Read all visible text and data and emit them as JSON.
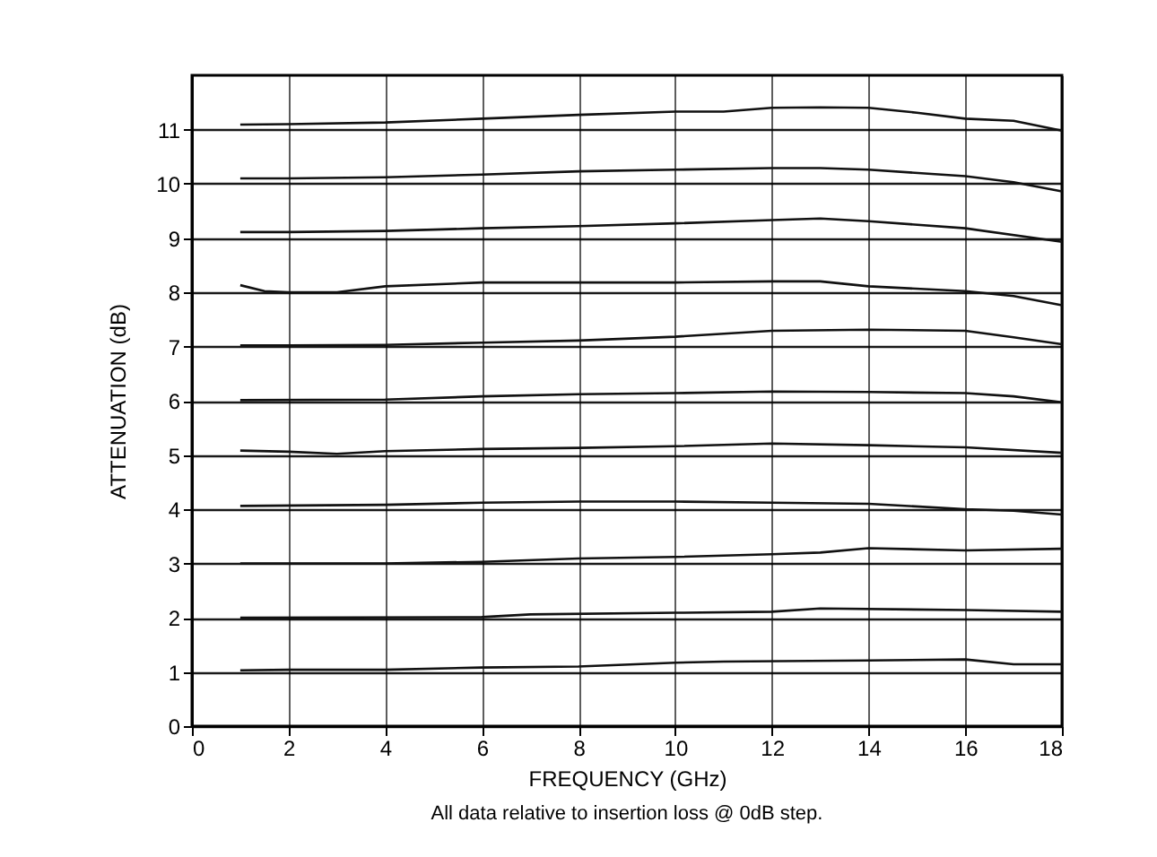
{
  "chart_data": {
    "type": "line",
    "xlabel": "FREQUENCY (GHz)",
    "ylabel": "ATTENUATION (dB)",
    "annotations": [
      "All data relative to insertion loss @ 0dB step."
    ],
    "xlim": [
      0,
      18
    ],
    "xticks": [
      0,
      2,
      4,
      6,
      8,
      10,
      12,
      14,
      16,
      18
    ],
    "ylim": [
      0,
      12
    ],
    "yticks": [
      0,
      1,
      2,
      3,
      4,
      5,
      6,
      7,
      8,
      9,
      10,
      11
    ],
    "grid": true,
    "legend": false,
    "marker": "none",
    "line_style": "solid",
    "series": [
      {
        "color": "#111111",
        "x": [
          1,
          2,
          4,
          6,
          8,
          10,
          11,
          12,
          13,
          14,
          15,
          16,
          17,
          18
        ],
        "values": [
          11.09,
          11.1,
          11.13,
          11.2,
          11.27,
          11.33,
          11.33,
          11.4,
          11.41,
          11.4,
          11.31,
          11.2,
          11.16,
          10.98
        ]
      },
      {
        "color": "#111111",
        "x": [
          1,
          2,
          4,
          6,
          8,
          10,
          12,
          13,
          14,
          16,
          17,
          18
        ],
        "values": [
          10.1,
          10.1,
          10.12,
          10.17,
          10.23,
          10.26,
          10.29,
          10.29,
          10.26,
          10.14,
          10.03,
          9.86
        ]
      },
      {
        "color": "#111111",
        "x": [
          1,
          2,
          4,
          6,
          8,
          10,
          12,
          13,
          14,
          16,
          18
        ],
        "values": [
          9.11,
          9.11,
          9.13,
          9.18,
          9.22,
          9.27,
          9.33,
          9.36,
          9.31,
          9.18,
          8.93
        ]
      },
      {
        "color": "#111111",
        "x": [
          1,
          1.5,
          2,
          3,
          4,
          6,
          8,
          10,
          12,
          13,
          14,
          16,
          17,
          18
        ],
        "values": [
          8.13,
          8.02,
          8.0,
          8.0,
          8.11,
          8.18,
          8.18,
          8.18,
          8.2,
          8.2,
          8.11,
          8.02,
          7.93,
          7.76
        ]
      },
      {
        "color": "#111111",
        "x": [
          1,
          2,
          4,
          6,
          8,
          10,
          12,
          14,
          16,
          17,
          18
        ],
        "values": [
          7.02,
          7.02,
          7.03,
          7.07,
          7.11,
          7.18,
          7.29,
          7.31,
          7.29,
          7.17,
          7.04
        ]
      },
      {
        "color": "#111111",
        "x": [
          1,
          4,
          6,
          8,
          10,
          12,
          14,
          16,
          17,
          18
        ],
        "values": [
          6.01,
          6.02,
          6.08,
          6.12,
          6.14,
          6.17,
          6.16,
          6.14,
          6.08,
          5.97
        ]
      },
      {
        "color": "#111111",
        "x": [
          1,
          2,
          3,
          4,
          6,
          8,
          10,
          12,
          14,
          16,
          18
        ],
        "values": [
          5.08,
          5.06,
          5.02,
          5.07,
          5.11,
          5.13,
          5.16,
          5.21,
          5.18,
          5.14,
          5.04
        ]
      },
      {
        "color": "#111111",
        "x": [
          1,
          4,
          6,
          8,
          10,
          12,
          14,
          16,
          17,
          18
        ],
        "values": [
          4.06,
          4.08,
          4.12,
          4.14,
          4.14,
          4.12,
          4.1,
          4.0,
          3.97,
          3.9
        ]
      },
      {
        "color": "#111111",
        "x": [
          1,
          4,
          6,
          8,
          10,
          12,
          13,
          14,
          16,
          18
        ],
        "values": [
          3.0,
          3.0,
          3.03,
          3.09,
          3.12,
          3.17,
          3.2,
          3.28,
          3.24,
          3.27
        ]
      },
      {
        "color": "#111111",
        "x": [
          1,
          6,
          7,
          10,
          12,
          13,
          16,
          18
        ],
        "values": [
          2.0,
          2.01,
          2.06,
          2.09,
          2.11,
          2.17,
          2.14,
          2.11
        ]
      },
      {
        "color": "#111111",
        "x": [
          1,
          2,
          4,
          6,
          8,
          10,
          11,
          14,
          16,
          17,
          18
        ],
        "values": [
          1.03,
          1.04,
          1.04,
          1.08,
          1.1,
          1.17,
          1.19,
          1.21,
          1.23,
          1.14,
          1.14
        ]
      }
    ]
  }
}
